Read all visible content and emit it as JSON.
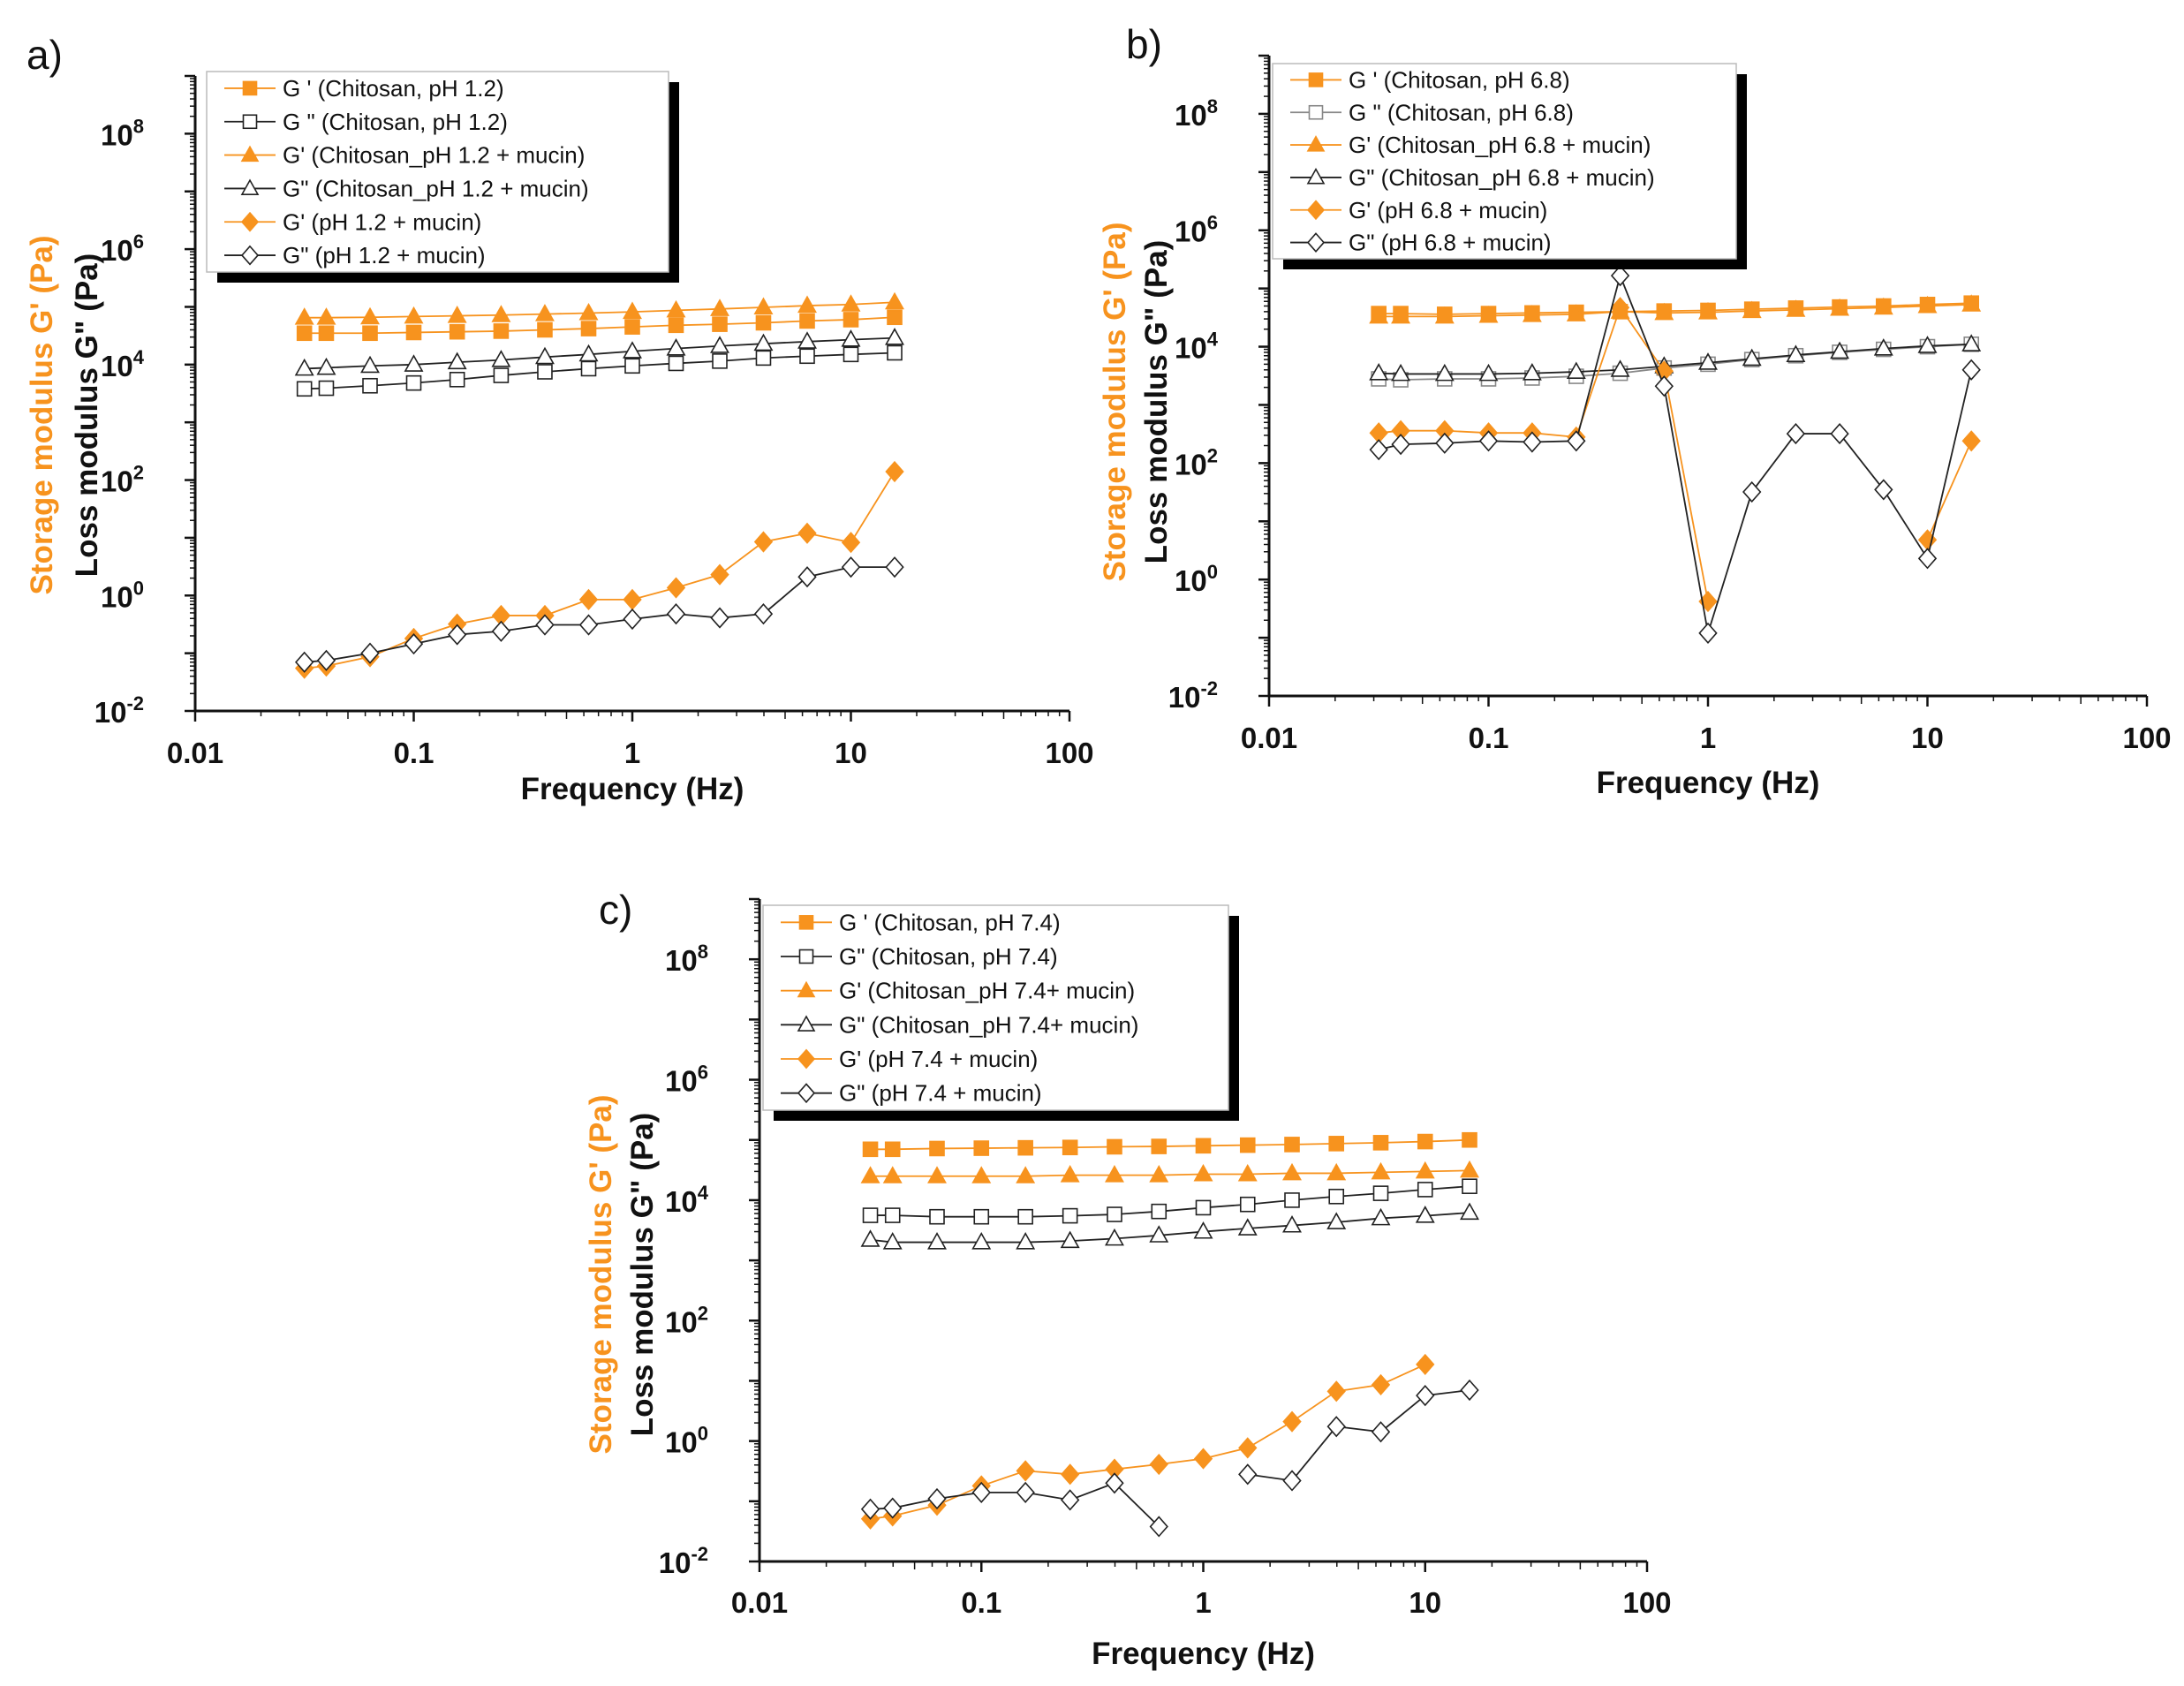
{
  "colors": {
    "storage": "#F7931E",
    "loss": "#222222"
  },
  "chart_data": [
    {
      "panel_label": "a)",
      "type": "line",
      "x_scale": "log",
      "y_scale": "log",
      "xlim": [
        0.01,
        100
      ],
      "ylim": [
        0.01,
        1000000000
      ],
      "xlabel": "Frequency (Hz)",
      "ylabel_storage": "Storage modulus G' (Pa)",
      "ylabel_loss": "Loss modulus G\" (Pa)",
      "x_tick_labels": [
        "0.01",
        "0.1",
        "1",
        "10",
        "100"
      ],
      "y_tick_exponents": [
        "-2",
        "0",
        "2",
        "4",
        "6",
        "8"
      ],
      "legend": "top-left",
      "x": [
        0.0316,
        0.0398,
        0.0631,
        0.1,
        0.158,
        0.251,
        0.398,
        0.631,
        1,
        1.585,
        2.512,
        3.98,
        6.31,
        10,
        15.85
      ],
      "series": [
        {
          "name": "G ' (Chitosan, pH 1.2)",
          "marker": "square",
          "filled": true,
          "color": "#F7931E",
          "values": [
            35000,
            35000,
            35000,
            36000,
            37000,
            38000,
            40000,
            42000,
            45000,
            48000,
            50000,
            53000,
            57000,
            60000,
            66000
          ]
        },
        {
          "name": "G \" (Chitosan, pH 1.2)",
          "marker": "square",
          "filled": false,
          "color": "#222222",
          "values": [
            3800,
            3900,
            4300,
            4800,
            5500,
            6500,
            7500,
            8500,
            9500,
            10500,
            11500,
            13000,
            14000,
            15000,
            16000
          ]
        },
        {
          "name": "G' (Chitosan_pH 1.2 + mucin)",
          "marker": "triangle",
          "filled": true,
          "color": "#F7931E",
          "values": [
            65000,
            65000,
            66000,
            68000,
            70000,
            72000,
            75000,
            78000,
            82000,
            87000,
            92000,
            98000,
            105000,
            110000,
            120000
          ]
        },
        {
          "name": "G\" (Chitosan_pH 1.2 + mucin)",
          "marker": "triangle",
          "filled": false,
          "color": "#222222",
          "values": [
            8500,
            8800,
            9500,
            10000,
            11000,
            12000,
            13500,
            15000,
            17000,
            19000,
            21000,
            23000,
            25000,
            27000,
            29000
          ]
        },
        {
          "name": "G' (pH 1.2 + mucin)",
          "marker": "diamond",
          "filled": true,
          "color": "#F7931E",
          "values": [
            0.055,
            0.06,
            0.087,
            0.18,
            0.32,
            0.45,
            0.45,
            0.85,
            0.85,
            1.36,
            2.3,
            8.5,
            12,
            8.3,
            140
          ]
        },
        {
          "name": "G\" (pH 1.2 + mucin)",
          "marker": "diamond",
          "filled": false,
          "color": "#222222",
          "values": [
            0.07,
            0.075,
            0.1,
            0.145,
            0.21,
            0.24,
            0.31,
            0.31,
            0.39,
            0.48,
            0.41,
            0.48,
            2.1,
            3.1,
            3.1
          ]
        }
      ]
    },
    {
      "panel_label": "b)",
      "type": "line",
      "x_scale": "log",
      "y_scale": "log",
      "xlim": [
        0.01,
        100
      ],
      "ylim": [
        0.01,
        1000000000
      ],
      "xlabel": "Frequency (Hz)",
      "ylabel_storage": "Storage modulus G' (Pa)",
      "ylabel_loss": "Loss modulus G\" (Pa)",
      "x_tick_labels": [
        "0.01",
        "0.1",
        "1",
        "10",
        "100"
      ],
      "y_tick_exponents": [
        "-2",
        "0",
        "2",
        "4",
        "6",
        "8"
      ],
      "legend": "top-left",
      "x": [
        0.0316,
        0.0398,
        0.0631,
        0.1,
        0.158,
        0.251,
        0.398,
        0.631,
        1,
        1.585,
        2.512,
        3.98,
        6.31,
        10,
        15.85
      ],
      "series": [
        {
          "name": "G ' (Chitosan, pH 6.8)",
          "marker": "square",
          "filled": true,
          "color": "#F7931E",
          "values": [
            37000,
            37000,
            36000,
            37000,
            38000,
            39000,
            40000,
            41000,
            42000,
            44000,
            46000,
            48000,
            50000,
            53000,
            56000
          ]
        },
        {
          "name": "G \" (Chitosan, pH 6.8)",
          "marker": "square",
          "filled": false,
          "color": "#888888",
          "values": [
            2800,
            2700,
            2800,
            2800,
            2900,
            3100,
            3500,
            4300,
            5000,
            6000,
            7000,
            8000,
            9000,
            10000,
            11000
          ]
        },
        {
          "name": "G' (Chitosan_pH 6.8 + mucin)",
          "marker": "triangle",
          "filled": true,
          "color": "#F7931E",
          "values": [
            33000,
            33000,
            33000,
            34000,
            35000,
            36000,
            40000,
            38000,
            39000,
            41000,
            43000,
            45000,
            47000,
            50000,
            53000
          ]
        },
        {
          "name": "G\" (Chitosan_pH 6.8 + mucin)",
          "marker": "triangle",
          "filled": false,
          "color": "#222222",
          "values": [
            3500,
            3400,
            3400,
            3400,
            3500,
            3700,
            4000,
            4600,
            5300,
            6200,
            7200,
            8200,
            9300,
            10300,
            11000
          ]
        },
        {
          "name": "G' (pH 6.8 + mucin)",
          "marker": "diamond",
          "filled": true,
          "color": "#F7931E",
          "values": [
            330,
            360,
            360,
            330,
            330,
            280,
            47000,
            3800,
            0.42,
            null,
            null,
            null,
            null,
            4.8,
            240
          ]
        },
        {
          "name": "G\" (pH 6.8 + mucin)",
          "marker": "diamond",
          "filled": false,
          "color": "#222222",
          "values": [
            170,
            210,
            220,
            240,
            230,
            240,
            166000,
            2100,
            0.12,
            32,
            320,
            320,
            35,
            2.3,
            4000
          ]
        }
      ]
    },
    {
      "panel_label": "c)",
      "type": "line",
      "x_scale": "log",
      "y_scale": "log",
      "xlim": [
        0.01,
        100
      ],
      "ylim": [
        0.01,
        1000000000
      ],
      "xlabel": "Frequency (Hz)",
      "ylabel_storage": "Storage modulus G' (Pa)",
      "ylabel_loss": "Loss modulus G\" (Pa)",
      "x_tick_labels": [
        "0.01",
        "0.1",
        "1",
        "10",
        "100"
      ],
      "y_tick_exponents": [
        "-2",
        "0",
        "2",
        "4",
        "6",
        "8"
      ],
      "legend": "top-left",
      "x": [
        0.0316,
        0.0398,
        0.0631,
        0.1,
        0.158,
        0.251,
        0.398,
        0.631,
        1,
        1.585,
        2.512,
        3.98,
        6.31,
        10,
        15.85
      ],
      "series": [
        {
          "name": "G ' (Chitosan, pH 7.4)",
          "marker": "square",
          "filled": true,
          "color": "#F7931E",
          "values": [
            70000,
            70000,
            72000,
            73000,
            74000,
            75000,
            77000,
            78000,
            80000,
            82000,
            84000,
            87000,
            90000,
            94000,
            100000
          ]
        },
        {
          "name": "G\" (Chitosan, pH 7.4)",
          "marker": "square",
          "filled": false,
          "color": "#222222",
          "values": [
            5600,
            5600,
            5300,
            5300,
            5300,
            5500,
            5800,
            6500,
            7500,
            8500,
            10000,
            11500,
            13000,
            15000,
            17000
          ]
        },
        {
          "name": "G' (Chitosan_pH 7.4+ mucin)",
          "marker": "triangle",
          "filled": true,
          "color": "#F7931E",
          "values": [
            25000,
            25000,
            25000,
            25000,
            25000,
            26000,
            26000,
            26000,
            27000,
            27000,
            28000,
            28000,
            29000,
            30000,
            31000
          ]
        },
        {
          "name": "G\" (Chitosan_pH 7.4+ mucin)",
          "marker": "triangle",
          "filled": false,
          "color": "#222222",
          "values": [
            2200,
            2000,
            2000,
            2000,
            2000,
            2100,
            2300,
            2600,
            3000,
            3400,
            3800,
            4300,
            5000,
            5500,
            6200
          ]
        },
        {
          "name": "G' (pH 7.4 + mucin)",
          "marker": "diamond",
          "filled": true,
          "color": "#F7931E",
          "values": [
            0.051,
            0.057,
            0.086,
            0.18,
            0.32,
            0.28,
            0.34,
            0.41,
            0.51,
            0.77,
            2.1,
            6.7,
            8.6,
            18.7,
            null
          ]
        },
        {
          "name": "G\" (pH 7.4 + mucin)",
          "marker": "diamond",
          "filled": false,
          "color": "#222222",
          "values": [
            0.074,
            0.077,
            0.11,
            0.14,
            0.14,
            0.105,
            0.2,
            0.038,
            null,
            0.28,
            0.22,
            1.74,
            1.42,
            5.7,
            7.0
          ]
        }
      ]
    }
  ]
}
